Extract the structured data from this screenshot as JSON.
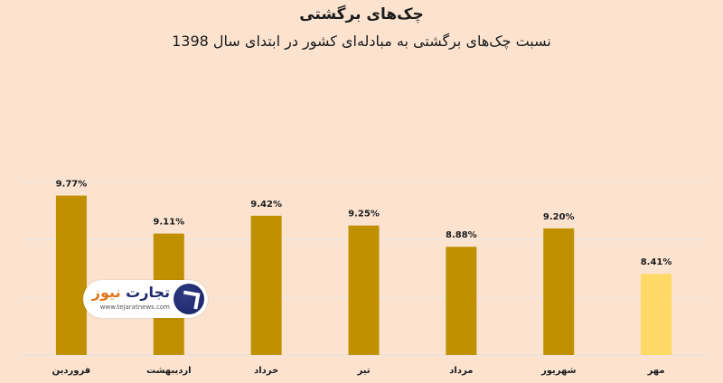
{
  "header": {
    "title": "چک‌های برگشتی",
    "subtitle": "نسبت چک‌های برگشتی به مبادله‌ای کشور در ابتدای سال 1398"
  },
  "logo": {
    "name_part1": "تجارت",
    "name_part2": "نیوز",
    "url": "www.tejaratnews.com"
  },
  "chart_data": {
    "type": "bar",
    "title": "چک‌های برگشتی",
    "subtitle": "نسبت چک‌های برگشتی به مبادله‌ای کشور در ابتدای سال 1398",
    "categories": [
      "فروردین",
      "اردیبهشت",
      "خرداد",
      "تیر",
      "مرداد",
      "شهریور",
      "مهر"
    ],
    "values": [
      9.77,
      9.11,
      9.42,
      9.25,
      8.88,
      9.2,
      8.41
    ],
    "labels": [
      "9.77%",
      "9.11%",
      "9.42%",
      "9.25%",
      "8.88%",
      "9.20%",
      "8.41%"
    ],
    "colors": [
      "#c09000",
      "#c09000",
      "#c09000",
      "#c09000",
      "#c09000",
      "#c09000",
      "#ffd966"
    ],
    "ylim": [
      7.0,
      10.0
    ],
    "grid": true,
    "xlabel": "",
    "ylabel": ""
  }
}
